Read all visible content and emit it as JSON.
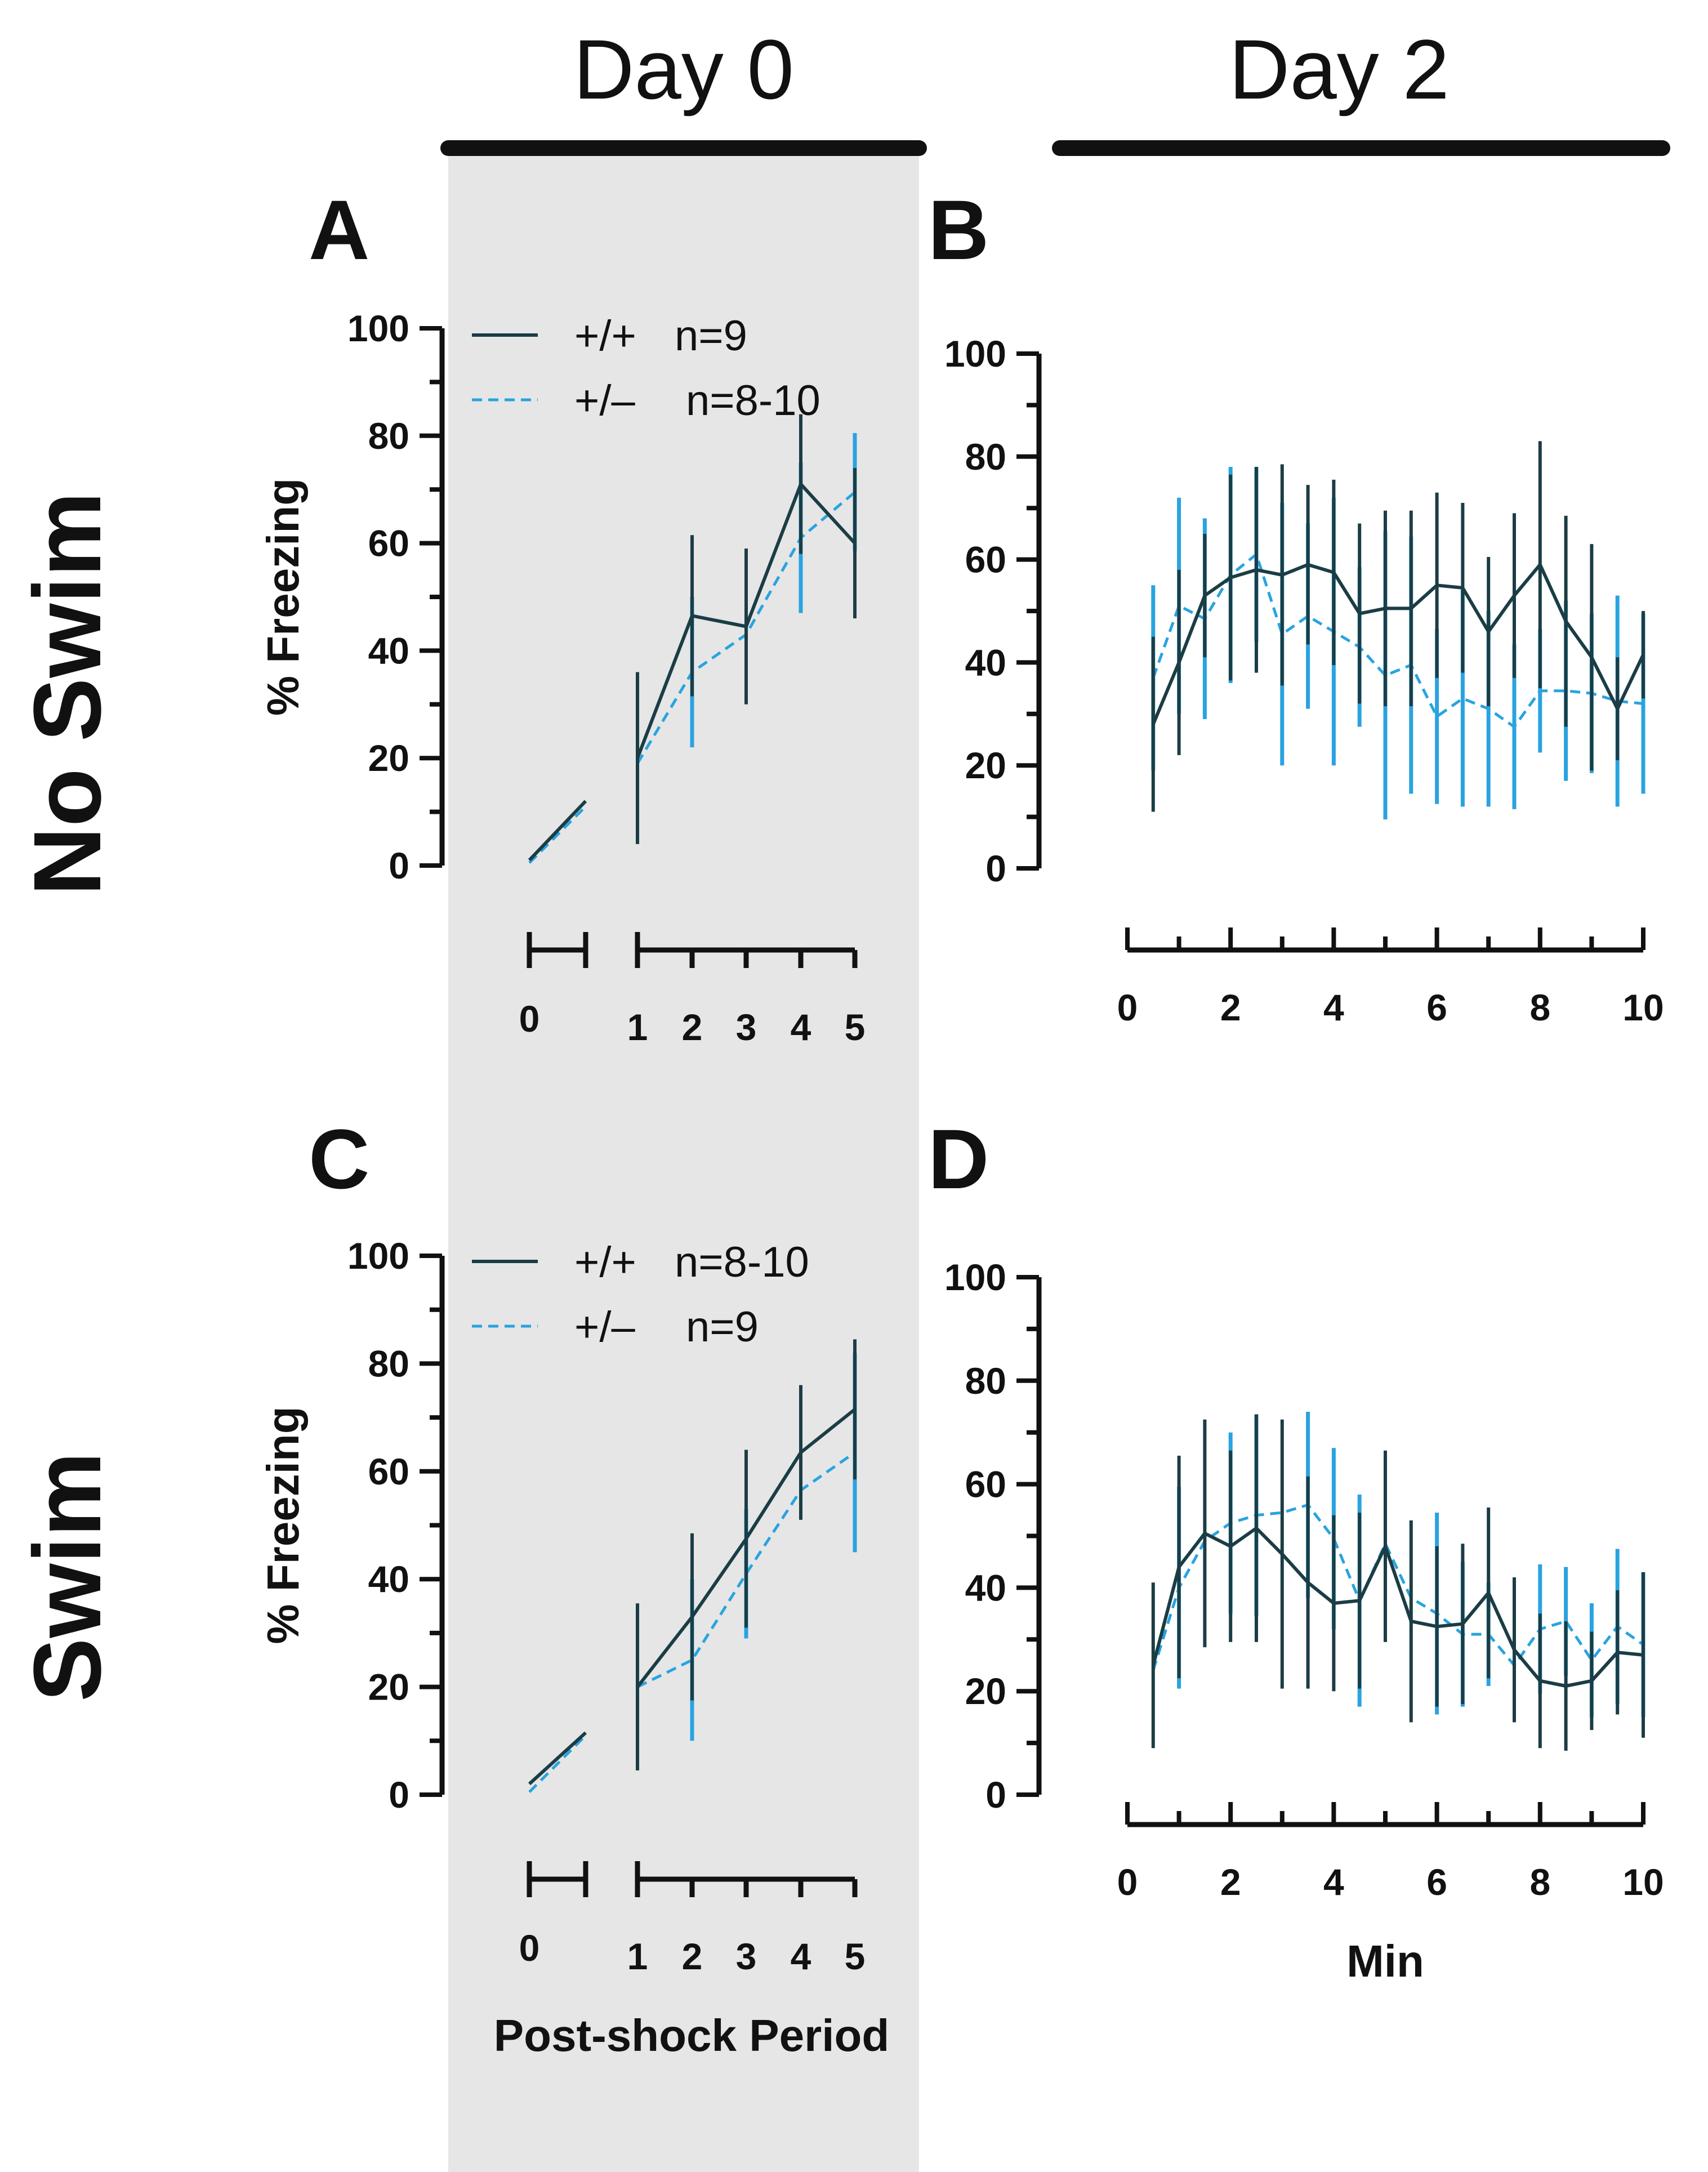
{
  "figure": {
    "headers": {
      "day0": "Day 0",
      "day2": "Day 2"
    },
    "row_labels": {
      "no_swim": "No Swim",
      "swim": "Swim"
    },
    "colors": {
      "wt": "#1b3d45",
      "het": "#29a3e0",
      "shade": "#e6e6e6",
      "axis": "#111111"
    }
  },
  "chart_data": [
    {
      "panel": "A",
      "type": "line",
      "ylabel": "% Freezing",
      "xlabel": "",
      "ylim": [
        0,
        100
      ],
      "y_ticks": [
        "0",
        "20",
        "40",
        "60",
        "80",
        "100"
      ],
      "x_ticks": [
        "0",
        "1",
        "2",
        "3",
        "4",
        "5"
      ],
      "legend": [
        {
          "symbol": "+/+",
          "n": "n=9"
        },
        {
          "symbol": "+/–",
          "n": "n=8-10"
        }
      ],
      "series": [
        {
          "name": "+/+",
          "seg0": [
            1,
            12
          ],
          "x": [
            1,
            2,
            3,
            4,
            5
          ],
          "values": [
            20,
            46.5,
            44.5,
            71,
            60
          ],
          "errors": [
            16,
            15,
            14.5,
            13,
            14
          ]
        },
        {
          "name": "+/–",
          "seg0": [
            0.5,
            11
          ],
          "x": [
            1,
            2,
            3,
            4,
            5
          ],
          "values": [
            19,
            36,
            43,
            61,
            69.5
          ],
          "errors": [
            0,
            14,
            0,
            14,
            11
          ]
        }
      ]
    },
    {
      "panel": "B",
      "type": "line",
      "ylabel": "",
      "xlabel": "",
      "ylim": [
        0,
        100
      ],
      "xlim": [
        0,
        10
      ],
      "y_ticks": [
        "0",
        "20",
        "40",
        "60",
        "80",
        "100"
      ],
      "x_ticks": [
        "0",
        "2",
        "4",
        "6",
        "8",
        "10"
      ],
      "series": [
        {
          "name": "+/+",
          "x": [
            0.5,
            1,
            1.5,
            2,
            2.5,
            3,
            3.5,
            4,
            4.5,
            5,
            5.5,
            6,
            6.5,
            7,
            7.5,
            8,
            8.5,
            9,
            9.5,
            10
          ],
          "values": [
            28,
            40,
            53,
            56.5,
            58,
            57,
            59,
            57.5,
            49.5,
            50.5,
            50.5,
            55,
            54.5,
            46,
            53,
            59,
            48,
            41,
            31,
            41.5
          ],
          "errors": [
            17,
            18,
            12,
            20,
            20,
            21.5,
            15.5,
            18,
            17.5,
            19,
            19,
            18,
            16.5,
            14.5,
            16,
            24,
            20.5,
            22,
            10,
            8.5
          ]
        },
        {
          "name": "+/–",
          "x": [
            0.5,
            1,
            1.5,
            2,
            2.5,
            3,
            3.5,
            4,
            4.5,
            5,
            5.5,
            6,
            6.5,
            7,
            7.5,
            8,
            8.5,
            9,
            9.5,
            10
          ],
          "values": [
            37,
            51,
            48.5,
            57,
            61,
            45.5,
            49,
            46,
            43,
            37.5,
            39.5,
            29.5,
            33,
            31,
            27.5,
            34.5,
            34.5,
            34,
            32.5,
            32
          ],
          "errors": [
            18,
            21,
            19.5,
            21,
            17,
            25.5,
            18,
            26,
            15.5,
            28,
            25,
            17,
            21,
            19,
            16,
            12,
            17.5,
            15.5,
            20.5,
            17.5
          ]
        }
      ]
    },
    {
      "panel": "C",
      "type": "line",
      "ylabel": "% Freezing",
      "xlabel": "Post-shock Period",
      "ylim": [
        0,
        100
      ],
      "y_ticks": [
        "0",
        "20",
        "40",
        "60",
        "80",
        "100"
      ],
      "x_ticks": [
        "0",
        "1",
        "2",
        "3",
        "4",
        "5"
      ],
      "legend": [
        {
          "symbol": "+/+",
          "n": "n=8-10"
        },
        {
          "symbol": "+/–",
          "n": "n=9"
        }
      ],
      "series": [
        {
          "name": "+/+",
          "seg0": [
            2,
            11.5
          ],
          "x": [
            1,
            2,
            3,
            4,
            5
          ],
          "values": [
            20,
            33,
            47.5,
            63.5,
            71.5
          ],
          "errors": [
            15.5,
            15.5,
            16.5,
            12.5,
            13
          ]
        },
        {
          "name": "+/–",
          "seg0": [
            0.5,
            11
          ],
          "x": [
            1,
            2,
            3,
            4,
            5
          ],
          "values": [
            20,
            25,
            41,
            56.5,
            63.5
          ],
          "errors": [
            0,
            15,
            12,
            0,
            18.5
          ]
        }
      ]
    },
    {
      "panel": "D",
      "type": "line",
      "ylabel": "",
      "xlabel": "Min",
      "ylim": [
        0,
        100
      ],
      "xlim": [
        0,
        10
      ],
      "y_ticks": [
        "0",
        "20",
        "40",
        "60",
        "80",
        "100"
      ],
      "x_ticks": [
        "0",
        "2",
        "4",
        "6",
        "8",
        "10"
      ],
      "series": [
        {
          "name": "+/+",
          "x": [
            0.5,
            1,
            1.5,
            2,
            2.5,
            3,
            3.5,
            4,
            4.5,
            5,
            5.5,
            6,
            6.5,
            7,
            7.5,
            8,
            8.5,
            9,
            9.5,
            10
          ],
          "values": [
            25,
            44,
            50.5,
            48,
            51.5,
            46.5,
            41,
            37,
            37.5,
            48,
            33.5,
            32.5,
            33,
            39,
            28,
            22,
            21,
            22,
            27.5,
            27
          ],
          "errors": [
            16,
            21.5,
            22,
            18.5,
            22,
            26,
            20.5,
            17,
            17,
            18.5,
            19.5,
            15.5,
            15.5,
            16.5,
            14,
            13,
            12.5,
            9.5,
            12,
            16
          ]
        },
        {
          "name": "+/–",
          "x": [
            0.5,
            1,
            1.5,
            2,
            2.5,
            3,
            3.5,
            4,
            4.5,
            5,
            5.5,
            6,
            6.5,
            7,
            7.5,
            8,
            8.5,
            9,
            9.5,
            10
          ],
          "values": [
            24,
            40,
            49,
            52.5,
            54,
            54.5,
            56,
            49.5,
            37.5,
            48.5,
            38,
            35,
            31,
            31,
            25,
            32,
            33.5,
            26,
            32.5,
            29
          ],
          "errors": [
            0,
            19.5,
            0,
            17.5,
            19.5,
            0,
            18,
            17.5,
            20.5,
            0,
            0,
            19.5,
            14,
            10,
            0,
            12.5,
            10.5,
            11,
            15,
            14
          ]
        }
      ]
    }
  ]
}
